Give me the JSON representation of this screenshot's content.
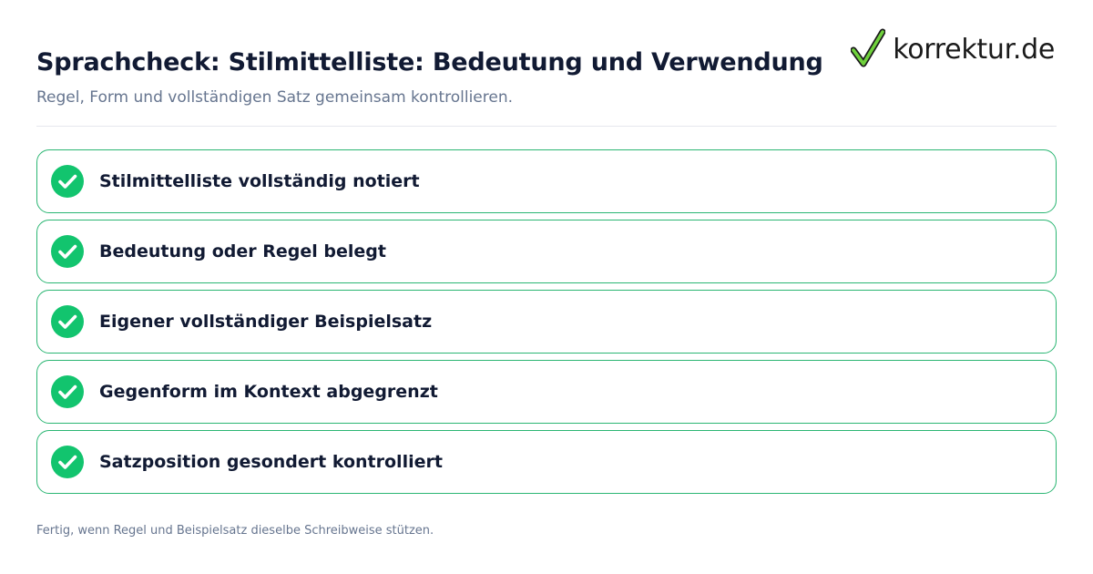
{
  "header": {
    "title": "Sprachcheck: Stilmittelliste: Bedeutung und Verwendung",
    "subtitle": "Regel, Form und vollständigen Satz gemeinsam kontrollieren."
  },
  "brand": {
    "name": "korrektur.de",
    "icon": "checkmark-icon",
    "icon_color": "#6fd13c"
  },
  "checklist": {
    "accent_color": "#2bb673",
    "badge_color": "#12c46e",
    "items": [
      {
        "label": "Stilmittelliste vollständig notiert",
        "checked": true,
        "icon": "check-circle-icon"
      },
      {
        "label": "Bedeutung oder Regel belegt",
        "checked": true,
        "icon": "check-circle-icon"
      },
      {
        "label": "Eigener vollständiger Beispielsatz",
        "checked": true,
        "icon": "check-circle-icon"
      },
      {
        "label": "Gegenform im Kontext abgegrenzt",
        "checked": true,
        "icon": "check-circle-icon"
      },
      {
        "label": "Satzposition gesondert kontrolliert",
        "checked": true,
        "icon": "check-circle-icon"
      }
    ]
  },
  "footer": {
    "note": "Fertig, wenn Regel und Beispielsatz dieselbe Schreibweise stützen."
  }
}
